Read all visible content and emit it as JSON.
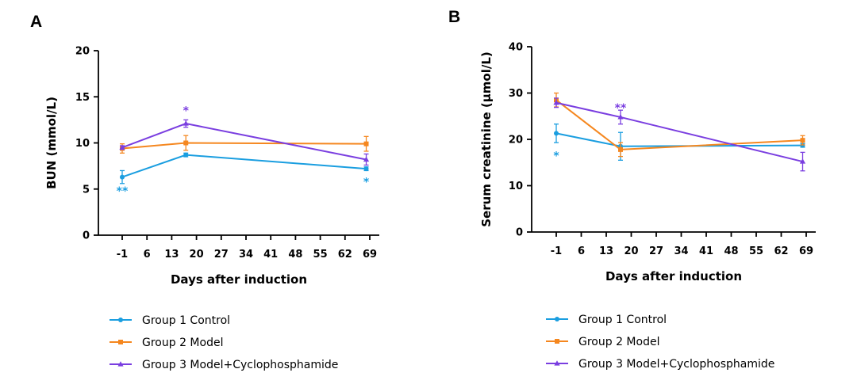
{
  "chart_data": [
    {
      "type": "line",
      "panel_label": "A",
      "xlabel": "Days after induction",
      "ylabel": "BUN (mmol/L)",
      "x_ticks": [
        -1,
        6,
        13,
        20,
        27,
        34,
        41,
        48,
        55,
        62,
        69
      ],
      "xlim": [
        -1,
        69
      ],
      "ylim": [
        0,
        20
      ],
      "y_ticks": [
        0,
        5,
        10,
        15,
        20
      ],
      "x": [
        -1,
        17,
        68
      ],
      "series": [
        {
          "name": "Group 1 Control",
          "color": "#1a9ee0",
          "marker": "circle",
          "values": [
            6.3,
            8.7,
            7.2
          ],
          "errors": [
            0.7,
            0.2,
            0.2
          ]
        },
        {
          "name": "Group 2 Model",
          "color": "#f5871f",
          "marker": "square",
          "values": [
            9.4,
            10.0,
            9.9
          ],
          "errors": [
            0.5,
            0.8,
            0.8
          ]
        },
        {
          "name": "Group 3 Model+Cyclophosphamide",
          "color": "#7a3ee0",
          "marker": "triangle",
          "values": [
            9.5,
            12.1,
            8.2
          ],
          "errors": [
            0.2,
            0.4,
            0.6
          ]
        }
      ],
      "annotations": [
        {
          "text": "**",
          "x": -1,
          "y": 4.8,
          "color": "#1a9ee0"
        },
        {
          "text": "*",
          "x": 17,
          "y": 13.5,
          "color": "#7a3ee0"
        },
        {
          "text": "*",
          "x": 68,
          "y": 5.8,
          "color": "#1a9ee0"
        }
      ]
    },
    {
      "type": "line",
      "panel_label": "B",
      "xlabel": "Days after induction",
      "ylabel": "Serum creatinine (µmol/L)",
      "x_ticks": [
        -1,
        6,
        13,
        20,
        27,
        34,
        41,
        48,
        55,
        62,
        69
      ],
      "xlim": [
        -1,
        69
      ],
      "ylim": [
        0,
        40
      ],
      "y_ticks": [
        0,
        10,
        20,
        30,
        40
      ],
      "x": [
        -1,
        17,
        68
      ],
      "series": [
        {
          "name": "Group 1 Control",
          "color": "#1a9ee0",
          "marker": "circle",
          "values": [
            21.3,
            18.5,
            18.7
          ],
          "errors": [
            2.0,
            3.0,
            0.4
          ]
        },
        {
          "name": "Group 2 Model",
          "color": "#f5871f",
          "marker": "square",
          "values": [
            28.5,
            17.8,
            19.8
          ],
          "errors": [
            1.5,
            1.5,
            1.0
          ]
        },
        {
          "name": "Group 3 Model+Cyclophosphamide",
          "color": "#7a3ee0",
          "marker": "triangle",
          "values": [
            27.9,
            24.8,
            15.2
          ],
          "errors": [
            1.0,
            1.5,
            2.0
          ]
        }
      ],
      "annotations": [
        {
          "text": "*",
          "x": -1,
          "y": 16.5,
          "color": "#1a9ee0"
        },
        {
          "text": "**",
          "x": 17,
          "y": 26.8,
          "color": "#7a3ee0"
        }
      ]
    }
  ]
}
